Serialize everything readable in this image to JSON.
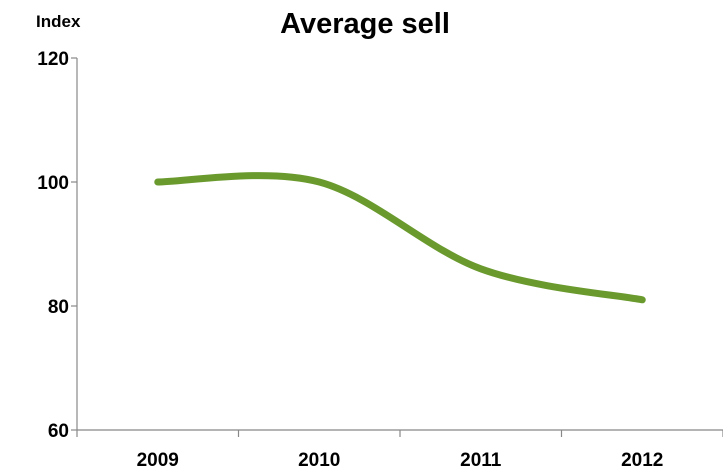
{
  "chart_data": {
    "type": "line",
    "title": "Average sell",
    "xlabel": "",
    "ylabel": "Index",
    "categories": [
      "2009",
      "2010",
      "2011",
      "2012"
    ],
    "series": [
      {
        "values": [
          100,
          100,
          86,
          81
        ],
        "color": "#6a9a2e"
      }
    ],
    "ylim": [
      60,
      120
    ],
    "yticks": [
      60,
      80,
      100,
      120
    ],
    "smooth": true,
    "grid": false,
    "legend": "none"
  }
}
